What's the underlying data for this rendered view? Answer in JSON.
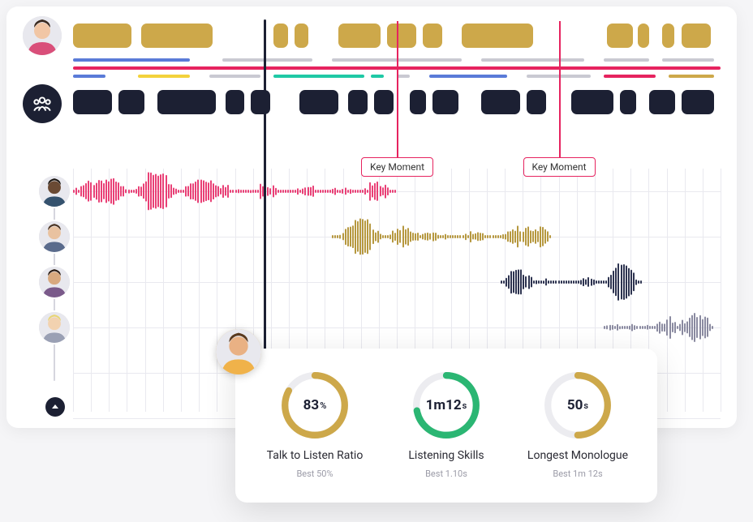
{
  "colors": {
    "gold": "#cda84a",
    "dark": "#1c2033",
    "pink": "#e6235f",
    "green": "#2bb673",
    "greenLine": "#1fc9a5",
    "blue": "#5a7bd8",
    "yellow": "#f3d23c",
    "grayLine": "#c9c9d2",
    "ring_bg": "#ececf0",
    "wave_pink": "#e94076",
    "wave_gold": "#b6983f",
    "wave_navy": "#2d3350",
    "wave_gray": "#8a8aa0",
    "background": "#ffffff"
  },
  "playhead_pct": 29.5,
  "speaker1": {
    "color": "#cda84a",
    "segments": [
      {
        "x": 0,
        "w": 9
      },
      {
        "x": 10.5,
        "w": 11
      },
      {
        "x": 31,
        "w": 2.2
      },
      {
        "x": 34.2,
        "w": 2.2
      },
      {
        "x": 41,
        "w": 6.5
      },
      {
        "x": 48.5,
        "w": 4.5
      },
      {
        "x": 54,
        "w": 3
      },
      {
        "x": 60,
        "w": 11
      },
      {
        "x": 82.5,
        "w": 4
      },
      {
        "x": 87.2,
        "w": 1.8
      },
      {
        "x": 91,
        "w": 1.8
      },
      {
        "x": 94,
        "w": 4.5
      }
    ]
  },
  "topic_lines": [
    {
      "y": 0,
      "segs": [
        {
          "x": 0,
          "w": 18,
          "c": "#5a7bd8"
        },
        {
          "x": 23,
          "w": 14,
          "c": "#c9c9d2"
        },
        {
          "x": 40,
          "w": 20,
          "c": "#c9c9d2"
        },
        {
          "x": 63,
          "w": 16,
          "c": "#c9c9d2"
        },
        {
          "x": 82,
          "w": 7,
          "c": "#c9c9d2"
        },
        {
          "x": 91,
          "w": 8,
          "c": "#c9c9d2"
        }
      ]
    },
    {
      "y": 10,
      "segs": [
        {
          "x": 0,
          "w": 100,
          "c": "#e6235f"
        }
      ]
    },
    {
      "y": 20,
      "segs": [
        {
          "x": 0,
          "w": 5,
          "c": "#5a7bd8"
        },
        {
          "x": 10,
          "w": 8,
          "c": "#f3d23c"
        },
        {
          "x": 21,
          "w": 8,
          "c": "#c9c9d2"
        },
        {
          "x": 31,
          "w": 14,
          "c": "#1fc9a5"
        },
        {
          "x": 46,
          "w": 2,
          "c": "#1fc9a5"
        },
        {
          "x": 50,
          "w": 2,
          "c": "#c9c9d2"
        },
        {
          "x": 55,
          "w": 12,
          "c": "#5a7bd8"
        },
        {
          "x": 70,
          "w": 10,
          "c": "#c9c9d2"
        },
        {
          "x": 82,
          "w": 8,
          "c": "#e6235f"
        },
        {
          "x": 92,
          "w": 7,
          "c": "#cda84a"
        }
      ]
    }
  ],
  "group": {
    "color": "#1c2033",
    "segments": [
      {
        "x": 0,
        "w": 6
      },
      {
        "x": 7,
        "w": 4
      },
      {
        "x": 13,
        "w": 9
      },
      {
        "x": 23.5,
        "w": 3
      },
      {
        "x": 27.5,
        "w": 3
      },
      {
        "x": 35,
        "w": 6
      },
      {
        "x": 42.5,
        "w": 3
      },
      {
        "x": 46.5,
        "w": 3
      },
      {
        "x": 52,
        "w": 2.5
      },
      {
        "x": 55.5,
        "w": 4
      },
      {
        "x": 63,
        "w": 6
      },
      {
        "x": 70,
        "w": 3
      },
      {
        "x": 77,
        "w": 6.5
      },
      {
        "x": 84.5,
        "w": 2.5
      },
      {
        "x": 89,
        "w": 4
      },
      {
        "x": 94,
        "w": 5
      }
    ]
  },
  "key_moments": [
    {
      "pct": 50,
      "label": "Key Moment"
    },
    {
      "pct": 75,
      "label": "Key Moment"
    }
  ],
  "grid": {
    "cols": 36,
    "rows": 5
  },
  "participants": [
    {
      "id": "p1",
      "wave": {
        "color": "#e94076",
        "start": 0,
        "end": 50,
        "pattern": "dense"
      }
    },
    {
      "id": "p2",
      "wave": {
        "color": "#b6983f",
        "start": 40,
        "end": 74,
        "pattern": "medium"
      }
    },
    {
      "id": "p3",
      "wave": {
        "color": "#2d3350",
        "start": 66,
        "end": 88,
        "pattern": "short"
      }
    },
    {
      "id": "p4",
      "wave": {
        "color": "#8a8aa0",
        "start": 82,
        "end": 99,
        "pattern": "short"
      }
    }
  ],
  "avatar_tints": {
    "main": {
      "skin": "#f1c6a5",
      "hair": "#3a2a20",
      "shirt": "#d94f7a"
    },
    "stats": {
      "skin": "#e9b184",
      "hair": "#5a3a1f",
      "shirt": "#f0b24a"
    },
    "p1": {
      "skin": "#6a4a34",
      "hair": "#1a1510",
      "shirt": "#35526e"
    },
    "p2": {
      "skin": "#e9c2a0",
      "hair": "#4a3320",
      "shirt": "#5a6b8c"
    },
    "p3": {
      "skin": "#d8a97f",
      "hair": "#2a1c14",
      "shirt": "#7a5a8a"
    },
    "p4": {
      "skin": "#f2d2b0",
      "hair": "#e8d574",
      "shirt": "#9aa0b4"
    }
  },
  "stats": [
    {
      "id": "ratio",
      "ring_color": "#cda84a",
      "pct": 83,
      "value": "83",
      "unit": "%",
      "title": "Talk to Listen Ratio",
      "sub": "Best 50%"
    },
    {
      "id": "listen",
      "ring_color": "#2bb673",
      "pct": 72,
      "value": "1m12",
      "unit": "s",
      "title": "Listening Skills",
      "sub": "Best 1.10s"
    },
    {
      "id": "mono",
      "ring_color": "#cda84a",
      "pct": 50,
      "value": "50",
      "unit": "s",
      "title": "Longest Monologue",
      "sub": "Best 1m 12s"
    }
  ]
}
